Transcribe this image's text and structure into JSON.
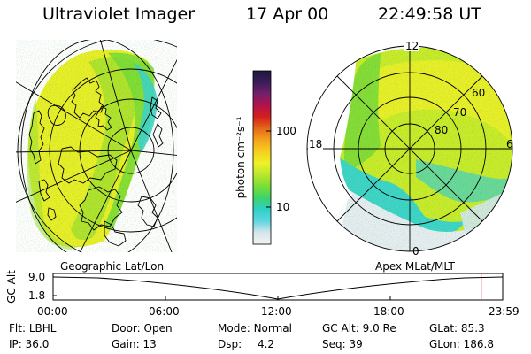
{
  "header": {
    "instrument": "Ultraviolet Imager",
    "date": "17 Apr 00",
    "time": "22:49:58 UT"
  },
  "colorbar": {
    "label": "photon cm⁻²s⁻¹",
    "ticks": [
      "100",
      "10"
    ],
    "stops": [
      "#f2f2f2",
      "#d8e6ec",
      "#5fd6e0",
      "#2fd0c8",
      "#3dd36a",
      "#79de36",
      "#b9e62e",
      "#eef226",
      "#f5d01f",
      "#f5a31c",
      "#e46a18",
      "#d3201c",
      "#b3114c",
      "#74206a",
      "#3a1d5a",
      "#1d1a3c"
    ]
  },
  "geo_panel": {
    "caption": "Geographic Lat/Lon"
  },
  "apex_panel": {
    "caption": "Apex MLat/MLT",
    "mlt_labels": {
      "top": "12",
      "left": "18",
      "right": "6",
      "bottom": "0"
    },
    "mlat_labels": [
      "60",
      "70",
      "80"
    ]
  },
  "timeline": {
    "ylabel": "GC Alt",
    "y_ticks": [
      "9.0",
      "1.8"
    ],
    "x_ticks": [
      "00:00",
      "06:00",
      "12:00",
      "18:00",
      "23:59"
    ],
    "current_fraction": 0.952
  },
  "status": [
    [
      {
        "k": "Flt:",
        "v": "LBHL"
      },
      {
        "k": "Door:",
        "v": "Open"
      },
      {
        "k": "Mode:",
        "v": "Normal"
      },
      {
        "k": "GC Alt:",
        "v": "9.0 Re"
      },
      {
        "k": "GLat:",
        "v": "85.3"
      }
    ],
    [
      {
        "k": "IP:",
        "v": "36.0"
      },
      {
        "k": "Gain:",
        "v": "13"
      },
      {
        "k": "Dsp:",
        "v": "4.2"
      },
      {
        "k": "Seq:",
        "v": "39"
      },
      {
        "k": "GLon:",
        "v": "186.8"
      }
    ]
  ],
  "colors": {
    "yellow": "#e9f02a",
    "green": "#7bdc38",
    "cyan": "#3fd5d8",
    "limb": "#cfe4ea"
  }
}
